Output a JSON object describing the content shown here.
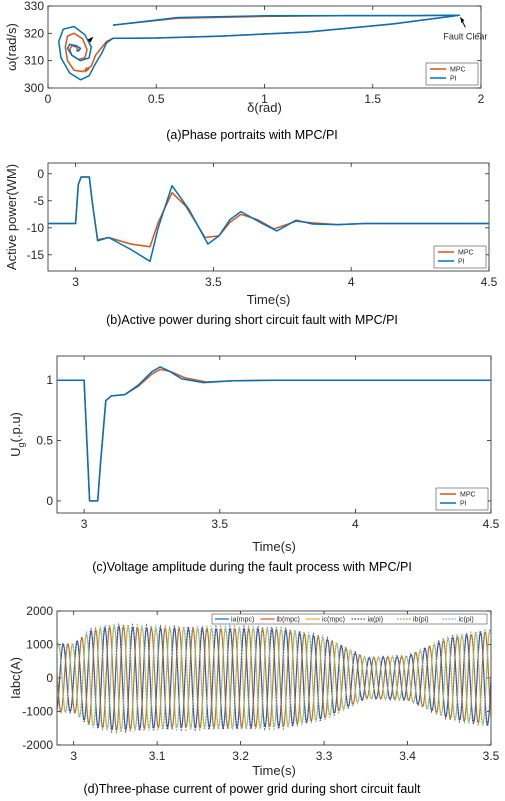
{
  "colors": {
    "mpc": "#D95319",
    "pi": "#0072BD",
    "ia": "#0072BD",
    "ib": "#D95319",
    "ic": "#EDB120",
    "ia_pi": "#7E2F8E",
    "ib_pi": "#77AC30",
    "ic_pi": "#4DBEEE"
  },
  "chart_data": [
    {
      "id": "a",
      "type": "line",
      "caption": "(a)Phase portraits with MPC/PI",
      "xlabel": "δ(rad)",
      "ylabel": "ω(rad/s)",
      "xlim": [
        0,
        2
      ],
      "ylim": [
        300,
        330
      ],
      "xticks": [
        "0",
        "0.5",
        "1",
        "1.5",
        "2"
      ],
      "yticks": [
        "300",
        "310",
        "320",
        "330"
      ],
      "legend": [
        "MPC",
        "PI"
      ],
      "legend_loc": "bottom-right",
      "annotation": "Fault Clear",
      "series": [
        {
          "name": "MPC",
          "x": [
            0.3,
            0.6,
            1.0,
            1.4,
            1.7,
            1.85,
            1.9,
            1.6,
            1.2,
            0.8,
            0.5,
            0.3,
            0.27,
            0.25,
            0.22,
            0.2,
            0.16,
            0.12,
            0.09,
            0.08,
            0.09,
            0.12,
            0.16,
            0.18,
            0.17,
            0.14,
            0.11,
            0.1,
            0.11,
            0.13,
            0.14
          ],
          "y": [
            323,
            325.5,
            326.2,
            326.5,
            326.5,
            326.6,
            326.6,
            323.5,
            320.5,
            319,
            318.3,
            318.2,
            317,
            315,
            312,
            308,
            306,
            306.5,
            310,
            315,
            319,
            320,
            318,
            314,
            311,
            310.5,
            312,
            314,
            315.5,
            315,
            314
          ]
        },
        {
          "name": "PI",
          "x": [
            0.3,
            0.6,
            1.0,
            1.4,
            1.7,
            1.85,
            1.9,
            1.6,
            1.2,
            0.8,
            0.5,
            0.3,
            0.27,
            0.25,
            0.22,
            0.19,
            0.15,
            0.1,
            0.06,
            0.05,
            0.07,
            0.12,
            0.17,
            0.2,
            0.19,
            0.15,
            0.11,
            0.09,
            0.1,
            0.13,
            0.15,
            0.14,
            0.13
          ],
          "y": [
            323,
            325.8,
            326.4,
            326.5,
            326.5,
            326.6,
            326.6,
            323.5,
            320.5,
            319,
            318.3,
            318.2,
            316.5,
            313,
            309,
            304.5,
            303,
            305.5,
            311,
            317,
            321.5,
            322.5,
            319.5,
            315,
            311,
            310,
            312,
            314.5,
            316,
            315.5,
            314.5,
            313.5,
            313.8
          ]
        }
      ]
    },
    {
      "id": "b",
      "type": "line",
      "caption": "(b)Active power during short circuit fault with MPC/PI",
      "xlabel": "Time(s)",
      "ylabel": "Active power(WM)",
      "xlim": [
        2.9,
        4.5
      ],
      "ylim": [
        -18,
        2
      ],
      "xticks": [
        "3",
        "3.5",
        "4",
        "4.5"
      ],
      "yticks": [
        "-15",
        "-10",
        "-5",
        "0"
      ],
      "legend": [
        "MPC",
        "PI"
      ],
      "legend_loc": "bottom-right",
      "series": [
        {
          "name": "MPC",
          "x": [
            2.9,
            3.0,
            3.01,
            3.02,
            3.05,
            3.06,
            3.08,
            3.12,
            3.2,
            3.27,
            3.3,
            3.35,
            3.4,
            3.47,
            3.52,
            3.56,
            3.6,
            3.66,
            3.72,
            3.8,
            3.86,
            3.95,
            4.05,
            4.2,
            4.5
          ],
          "y": [
            -9.2,
            -9.2,
            -2,
            -0.6,
            -0.6,
            -5,
            -12.2,
            -11.8,
            -13,
            -13.5,
            -9,
            -3.5,
            -6,
            -11.8,
            -11.5,
            -9,
            -7.5,
            -8.5,
            -10.2,
            -8.8,
            -9.1,
            -9.4,
            -9.2,
            -9.2,
            -9.2
          ]
        },
        {
          "name": "PI",
          "x": [
            2.9,
            3.0,
            3.01,
            3.02,
            3.05,
            3.06,
            3.08,
            3.12,
            3.2,
            3.27,
            3.3,
            3.35,
            3.41,
            3.48,
            3.52,
            3.56,
            3.6,
            3.67,
            3.73,
            3.8,
            3.86,
            3.95,
            4.05,
            4.2,
            4.5
          ],
          "y": [
            -9.2,
            -9.2,
            -2,
            -0.6,
            -0.6,
            -5,
            -12.4,
            -11.8,
            -14,
            -16.2,
            -10,
            -2.2,
            -6.5,
            -13,
            -11.5,
            -8.5,
            -7,
            -9,
            -10.6,
            -8.6,
            -9.3,
            -9.4,
            -9.2,
            -9.2,
            -9.2
          ]
        }
      ]
    },
    {
      "id": "c",
      "type": "line",
      "caption": "(c)Voltage amplitude during the fault process with MPC/PI",
      "xlabel": "Time(s)",
      "ylabel": "U",
      "ylabel_sub": "g",
      "ylabel_suffix": "(.p.u)",
      "xlim": [
        2.9,
        4.5
      ],
      "ylim": [
        -0.1,
        1.2
      ],
      "xticks": [
        "3",
        "3.5",
        "4",
        "4.5"
      ],
      "yticks": [
        "0",
        "0.5",
        "1"
      ],
      "legend": [
        "MPC",
        "PI"
      ],
      "legend_loc": "bottom-right",
      "series": [
        {
          "name": "MPC",
          "x": [
            2.9,
            3.0,
            3.02,
            3.05,
            3.06,
            3.08,
            3.1,
            3.15,
            3.2,
            3.25,
            3.28,
            3.32,
            3.37,
            3.45,
            3.55,
            3.7,
            4.0,
            4.5
          ],
          "y": [
            1,
            1,
            0,
            0,
            0.3,
            0.83,
            0.87,
            0.88,
            0.95,
            1.05,
            1.09,
            1.07,
            1.02,
            0.985,
            0.995,
            1,
            1,
            1
          ]
        },
        {
          "name": "PI",
          "x": [
            2.9,
            3.0,
            3.02,
            3.05,
            3.06,
            3.08,
            3.1,
            3.15,
            3.2,
            3.25,
            3.28,
            3.31,
            3.36,
            3.44,
            3.55,
            3.7,
            4.0,
            4.5
          ],
          "y": [
            1,
            1,
            0,
            0,
            0.3,
            0.83,
            0.87,
            0.88,
            0.96,
            1.07,
            1.11,
            1.08,
            1.01,
            0.98,
            0.995,
            1,
            1,
            1
          ]
        }
      ]
    },
    {
      "id": "d",
      "type": "line",
      "caption": "(d)Three-phase current of power grid during short circuit fault",
      "xlabel": "Time(s)",
      "ylabel": "Iabc(A)",
      "xlim": [
        2.98,
        3.5
      ],
      "ylim": [
        -2000,
        2000
      ],
      "xticks": [
        "3",
        "3.1",
        "3.2",
        "3.3",
        "3.4",
        "3.5"
      ],
      "yticks": [
        "-2000",
        "-1000",
        "0",
        "1000",
        "2000"
      ],
      "legend": [
        "ia(mpc)",
        "ib(mpc)",
        "ic(mpc)",
        "ia(pi)",
        "ib(pi)",
        "ic(pi)"
      ],
      "legend_loc": "top",
      "frequency_hz": 60,
      "envelope": {
        "t": [
          2.98,
          3.0,
          3.02,
          3.05,
          3.1,
          3.2,
          3.25,
          3.3,
          3.35,
          3.4,
          3.45,
          3.5
        ],
        "amp": [
          1000,
          1000,
          1400,
          1550,
          1480,
          1470,
          1450,
          1200,
          600,
          650,
          1200,
          1400
        ]
      },
      "series": [
        {
          "name": "ia(mpc)",
          "phase_deg": 0,
          "style": "solid"
        },
        {
          "name": "ib(mpc)",
          "phase_deg": -120,
          "style": "solid"
        },
        {
          "name": "ic(mpc)",
          "phase_deg": 120,
          "style": "solid"
        },
        {
          "name": "ia(pi)",
          "phase_deg": 5,
          "style": "dotted"
        },
        {
          "name": "ib(pi)",
          "phase_deg": -115,
          "style": "dotted"
        },
        {
          "name": "ic(pi)",
          "phase_deg": 125,
          "style": "dotted"
        }
      ]
    }
  ]
}
